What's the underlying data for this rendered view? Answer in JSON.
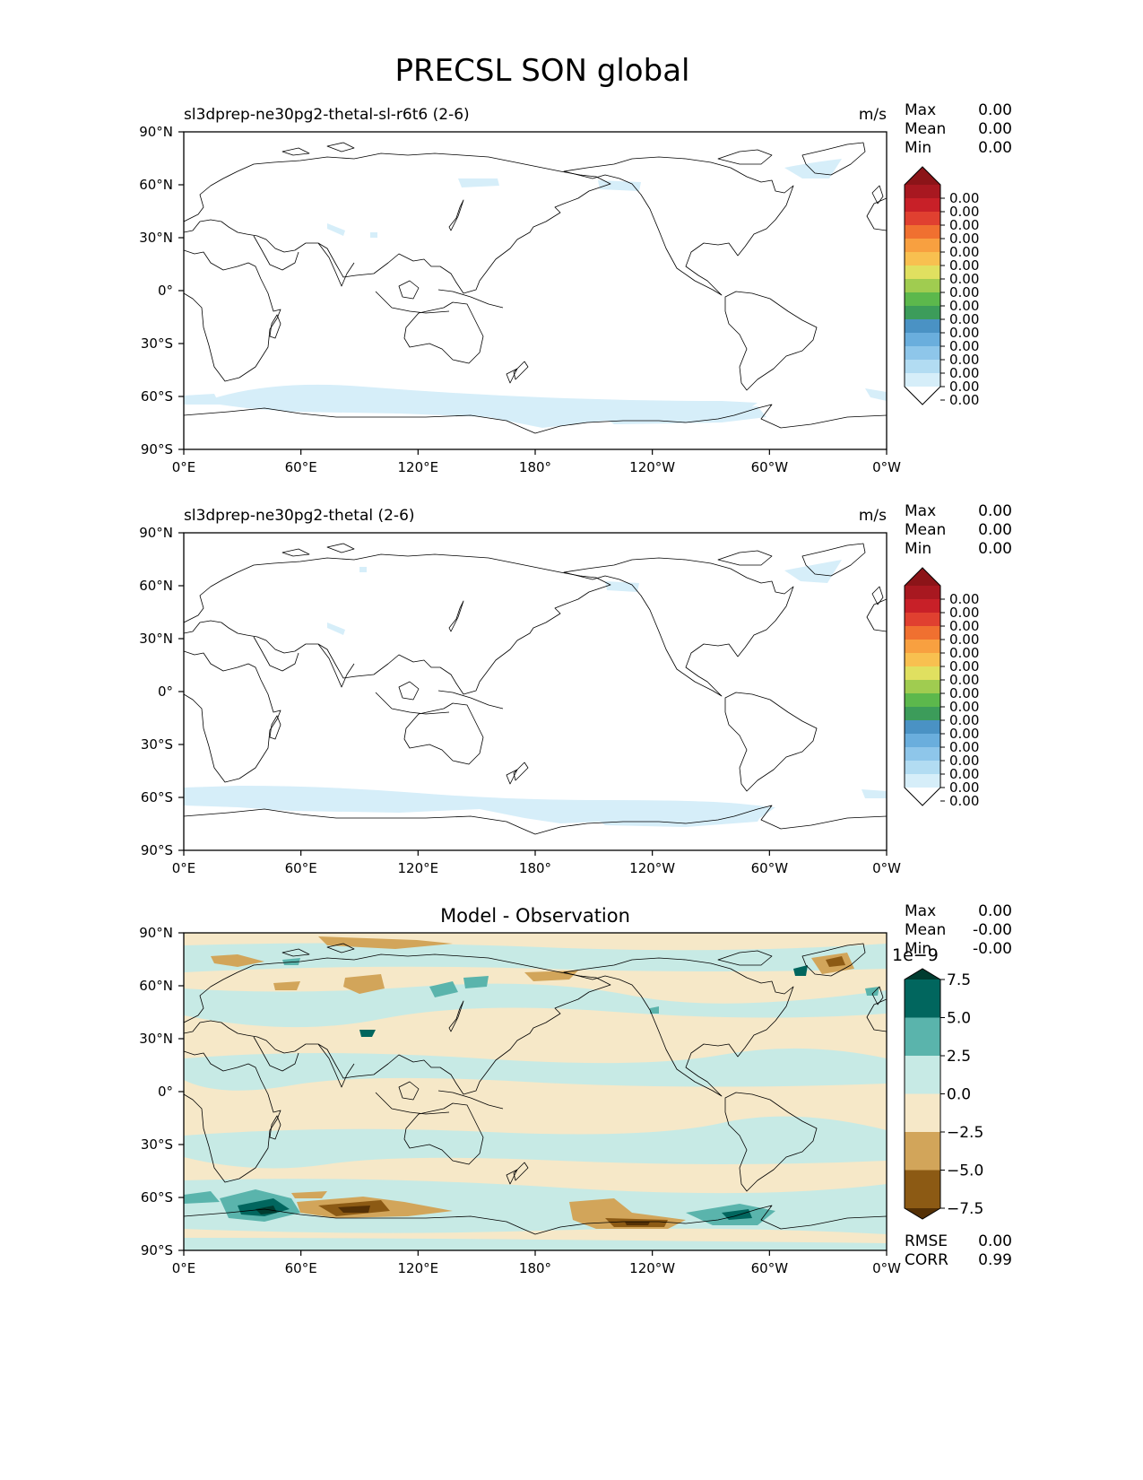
{
  "figure_title": "PRECSL SON global",
  "stat_labels": {
    "max": "Max",
    "mean": "Mean",
    "min": "Min",
    "rmse": "RMSE",
    "corr": "CORR"
  },
  "xticks": [
    "0°E",
    "60°E",
    "120°E",
    "180°",
    "120°W",
    "60°W",
    "0°W"
  ],
  "yticks": [
    "90°N",
    "60°N",
    "30°N",
    "0°",
    "30°S",
    "60°S",
    "90°S"
  ],
  "colors": {
    "land_outline": "#000000",
    "model_snow": "#d6eef9",
    "diff_negative": [
      "#f6e8c8",
      "#d2a55a",
      "#8c5a14",
      "#543005"
    ],
    "diff_positive": [
      "#c7eae5",
      "#5ab4ac",
      "#01665e",
      "#003c30"
    ]
  },
  "chart_data": [
    {
      "type": "heatmap",
      "title": "sl3dprep-ne30pg2-thetal-sl-r6t6 (2-6)",
      "units": "m/s",
      "stats": {
        "max": "0.00",
        "mean": "0.00",
        "min": "0.00"
      },
      "colorbar": {
        "ticks": [
          "0.00",
          "0.00",
          "0.00",
          "0.00",
          "0.00",
          "0.00",
          "0.00",
          "0.00",
          "0.00",
          "0.00",
          "0.00",
          "0.00",
          "0.00",
          "0.00",
          "0.00",
          "0.00"
        ],
        "colors": [
          "#ffffff",
          "#d6eef9",
          "#b2dcf2",
          "#8ec6ea",
          "#6aaedd",
          "#4a92c4",
          "#3c9c5a",
          "#5cb84c",
          "#a0cc50",
          "#e0e060",
          "#f8c050",
          "#f8a040",
          "#f07030",
          "#e04030",
          "#c82028",
          "#a81820",
          "#8c1418"
        ]
      },
      "lon_range": [
        0,
        360
      ],
      "lat_range": [
        -90,
        90
      ]
    },
    {
      "type": "heatmap",
      "title": "sl3dprep-ne30pg2-thetal (2-6)",
      "units": "m/s",
      "stats": {
        "max": "0.00",
        "mean": "0.00",
        "min": "0.00"
      },
      "colorbar": {
        "ticks": [
          "0.00",
          "0.00",
          "0.00",
          "0.00",
          "0.00",
          "0.00",
          "0.00",
          "0.00",
          "0.00",
          "0.00",
          "0.00",
          "0.00",
          "0.00",
          "0.00",
          "0.00",
          "0.00"
        ],
        "colors": [
          "#ffffff",
          "#d6eef9",
          "#b2dcf2",
          "#8ec6ea",
          "#6aaedd",
          "#4a92c4",
          "#3c9c5a",
          "#5cb84c",
          "#a0cc50",
          "#e0e060",
          "#f8c050",
          "#f8a040",
          "#f07030",
          "#e04030",
          "#c82028",
          "#a81820",
          "#8c1418"
        ]
      },
      "lon_range": [
        0,
        360
      ],
      "lat_range": [
        -90,
        90
      ]
    },
    {
      "type": "heatmap",
      "title": "Model - Observation",
      "stats": {
        "max": "0.00",
        "mean": "-0.00",
        "min": "-0.00",
        "rmse": "0.00",
        "corr": "0.99"
      },
      "colorbar": {
        "scale_label": "1e−9",
        "ticks": [
          "7.5",
          "5.0",
          "2.5",
          "0.0",
          "−2.5",
          "−5.0",
          "−7.5"
        ],
        "colors": [
          "#003c30",
          "#01665e",
          "#5ab4ac",
          "#c7eae5",
          "#f6e8c8",
          "#d2a55a",
          "#8c5a14",
          "#543005"
        ]
      },
      "lon_range": [
        0,
        360
      ],
      "lat_range": [
        -90,
        90
      ]
    }
  ]
}
